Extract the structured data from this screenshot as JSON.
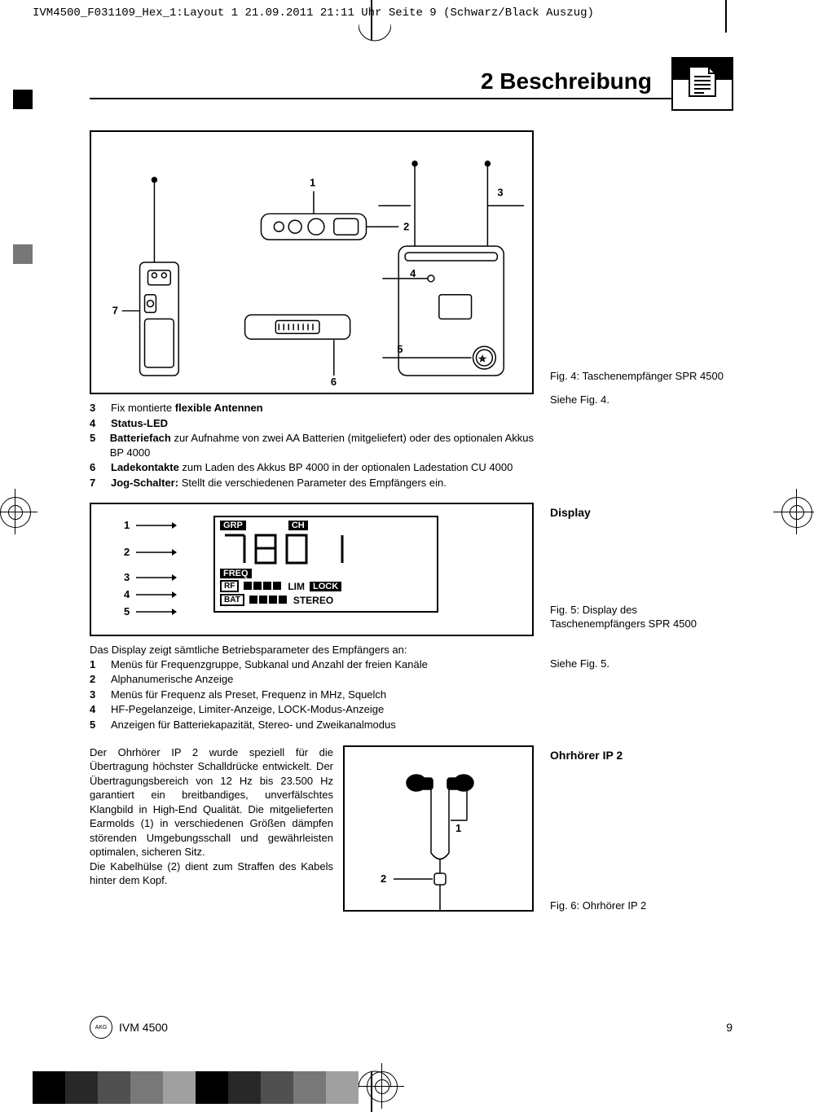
{
  "print_header": {
    "left": "IVM4500_F031109_Hex_1:Layout 1  21.09.2011  21:11 Uhr  Seite 9    (Schwarz/Black Auszug)",
    "right": ""
  },
  "section": {
    "title": "2 Beschreibung"
  },
  "fig4": {
    "caption": "Fig. 4: Taschenempfänger SPR 4500",
    "ref": "Siehe Fig. 4.",
    "callouts": [
      "1",
      "2",
      "3",
      "4",
      "5",
      "6",
      "7"
    ]
  },
  "list1": {
    "items": [
      {
        "n": "3",
        "html": "Fix montierte <b>flexible Antennen</b>"
      },
      {
        "n": "4",
        "html": "<b>Status-LED</b>"
      },
      {
        "n": "5",
        "html": "<b>Batteriefach</b> zur Aufnahme von zwei AA Batterien (mitgeliefert) oder des optionalen Akkus BP 4000"
      },
      {
        "n": "6",
        "html": "<b>Ladekontakte</b> zum Laden des Akkus BP 4000 in der optionalen Ladestation CU 4000"
      },
      {
        "n": "7",
        "html": "<b>Jog-Schalter:</b> Stellt die verschiedenen Parameter des Empfängers ein."
      }
    ]
  },
  "display_section": {
    "side_label": "Display",
    "fig5_caption": "Fig. 5: Display des Taschenempfängers SPR 4500",
    "ref": "Siehe Fig. 5.",
    "lcd": {
      "grp": "GRP",
      "ch": "CH",
      "value": "780 1",
      "freq": "FREQ",
      "rf": "RF",
      "lim": "LIM",
      "lock": "LOCK",
      "bat": "BAT",
      "stereo": "STEREO"
    },
    "callouts": [
      "1",
      "2",
      "3",
      "4",
      "5"
    ]
  },
  "list2": {
    "intro": "Das Display zeigt sämtliche Betriebsparameter des Empfängers an:",
    "items": [
      {
        "n": "1",
        "text": "Menüs für Frequenzgruppe, Subkanal und Anzahl der freien Kanäle"
      },
      {
        "n": "2",
        "text": "Alphanumerische Anzeige"
      },
      {
        "n": "3",
        "text": "Menüs für Frequenz als Preset, Frequenz in MHz, Squelch"
      },
      {
        "n": "4",
        "text": "HF-Pegelanzeige, Limiter-Anzeige, LOCK-Modus-Anzeige"
      },
      {
        "n": "5",
        "text": "Anzeigen für Batteriekapazität, Stereo- und Zweikanalmodus"
      }
    ]
  },
  "earphone": {
    "side_label": "Ohrhörer IP 2",
    "text": "Der Ohrhörer IP 2 wurde speziell für die Übertragung höchster Schalldrücke entwickelt. Der Übertragungsbereich von 12 Hz bis 23.500 Hz garantiert ein breitbandiges, unverfälschtes Klangbild in High-End Qualität. Die mitgelieferten Earmolds (1) in verschiedenen Größen dämpfen störenden Umgebungsschall und gewährleisten optimalen, sicheren Sitz.",
    "text2": "Die Kabelhülse (2) dient zum Straffen des Kabels hinter dem Kopf.",
    "fig6_caption": "Fig. 6: Ohrhörer IP 2",
    "callouts": [
      "1",
      "2"
    ]
  },
  "footer": {
    "model": "IVM 4500",
    "page": "9"
  },
  "colors": {
    "black": "#000000",
    "gray_squares": [
      "#000000",
      "#282828",
      "#505050",
      "#787878",
      "#a0a0a0",
      "#000000",
      "#282828",
      "#505050",
      "#787878",
      "#a0a0a0"
    ]
  }
}
